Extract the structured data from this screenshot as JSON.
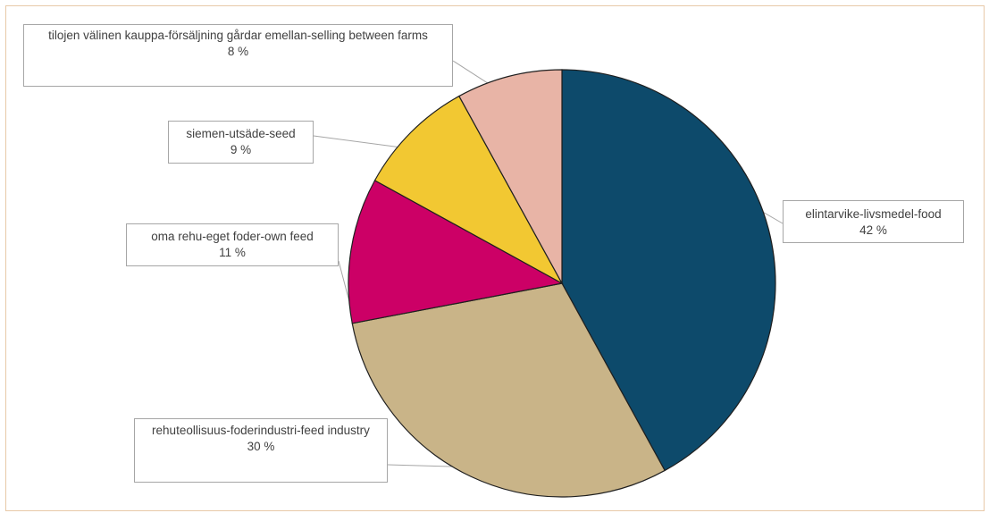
{
  "chart_data": {
    "type": "pie",
    "title": "",
    "categories": [
      "elintarvike-livsmedel-food",
      "rehuteollisuus-foderindustri-feed industry",
      "oma rehu-eget foder-own feed",
      "siemen-utsäde-seed",
      "tilojen välinen kauppa-försäljning gårdar emellan-selling between farms"
    ],
    "values": [
      42,
      30,
      11,
      9,
      8
    ],
    "value_labels": [
      "42 %",
      "30 %",
      "11 %",
      "9 %",
      "8 %"
    ],
    "colors": [
      "#0d4a6b",
      "#c9b488",
      "#cc0066",
      "#f2c832",
      "#e8b4a6"
    ],
    "start_angle_deg": 0,
    "direction": "clockwise",
    "legend": "none",
    "data_labels": "callouts"
  }
}
